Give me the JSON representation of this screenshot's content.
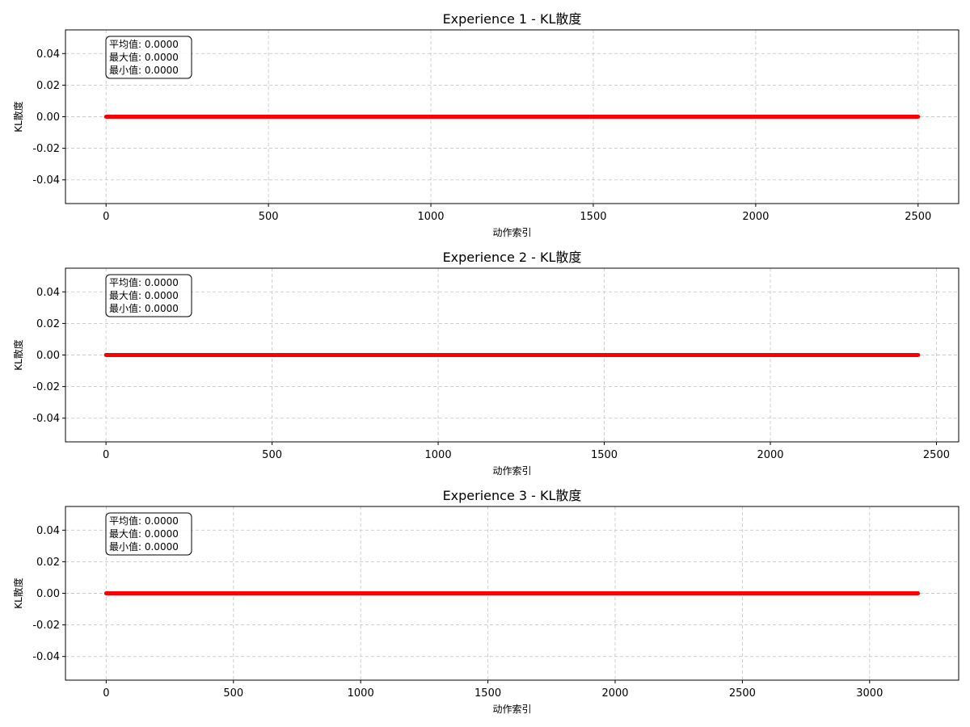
{
  "figure": {
    "background": "#ffffff"
  },
  "chart_data": [
    {
      "type": "line",
      "title": "Experience 1 - KL散度",
      "xlabel": "动作索引",
      "ylabel": "KL散度",
      "xlim": [
        -125,
        2625
      ],
      "ylim": [
        -0.055,
        0.055
      ],
      "xticks": [
        0,
        500,
        1000,
        1500,
        2000,
        2500
      ],
      "xtick_labels": [
        "0",
        "500",
        "1000",
        "1500",
        "2000",
        "2500"
      ],
      "yticks": [
        0.04,
        0.02,
        0.0,
        -0.02,
        -0.04
      ],
      "ytick_labels": [
        "0.04",
        "0.02",
        "0.00",
        "-0.02",
        "-0.04"
      ],
      "grid": true,
      "series": [
        {
          "color": "#ff0000",
          "x_start": 0,
          "x_end": 2500,
          "value": 0.0
        }
      ],
      "stats_box": [
        "平均值: 0.0000",
        "最大值: 0.0000",
        "最小值: 0.0000"
      ]
    },
    {
      "type": "line",
      "title": "Experience 2 - KL散度",
      "xlabel": "动作索引",
      "ylabel": "KL散度",
      "xlim": [
        -122,
        2567
      ],
      "ylim": [
        -0.055,
        0.055
      ],
      "xticks": [
        0,
        500,
        1000,
        1500,
        2000,
        2500
      ],
      "xtick_labels": [
        "0",
        "500",
        "1000",
        "1500",
        "2000",
        "2500"
      ],
      "yticks": [
        0.04,
        0.02,
        0.0,
        -0.02,
        -0.04
      ],
      "ytick_labels": [
        "0.04",
        "0.02",
        "0.00",
        "-0.02",
        "-0.04"
      ],
      "grid": true,
      "series": [
        {
          "color": "#ff0000",
          "x_start": 0,
          "x_end": 2445,
          "value": 0.0
        }
      ],
      "stats_box": [
        "平均值: 0.0000",
        "最大值: 0.0000",
        "最小值: 0.0000"
      ]
    },
    {
      "type": "line",
      "title": "Experience 3 - KL散度",
      "xlabel": "动作索引",
      "ylabel": "KL散度",
      "xlim": [
        -160,
        3350
      ],
      "ylim": [
        -0.055,
        0.055
      ],
      "xticks": [
        0,
        500,
        1000,
        1500,
        2000,
        2500,
        3000
      ],
      "xtick_labels": [
        "0",
        "500",
        "1000",
        "1500",
        "2000",
        "2500",
        "3000"
      ],
      "yticks": [
        0.04,
        0.02,
        0.0,
        -0.02,
        -0.04
      ],
      "ytick_labels": [
        "0.04",
        "0.02",
        "0.00",
        "-0.02",
        "-0.04"
      ],
      "grid": true,
      "series": [
        {
          "color": "#ff0000",
          "x_start": 0,
          "x_end": 3190,
          "value": 0.0
        }
      ],
      "stats_box": [
        "平均值: 0.0000",
        "最大值: 0.0000",
        "最小值: 0.0000"
      ]
    }
  ]
}
